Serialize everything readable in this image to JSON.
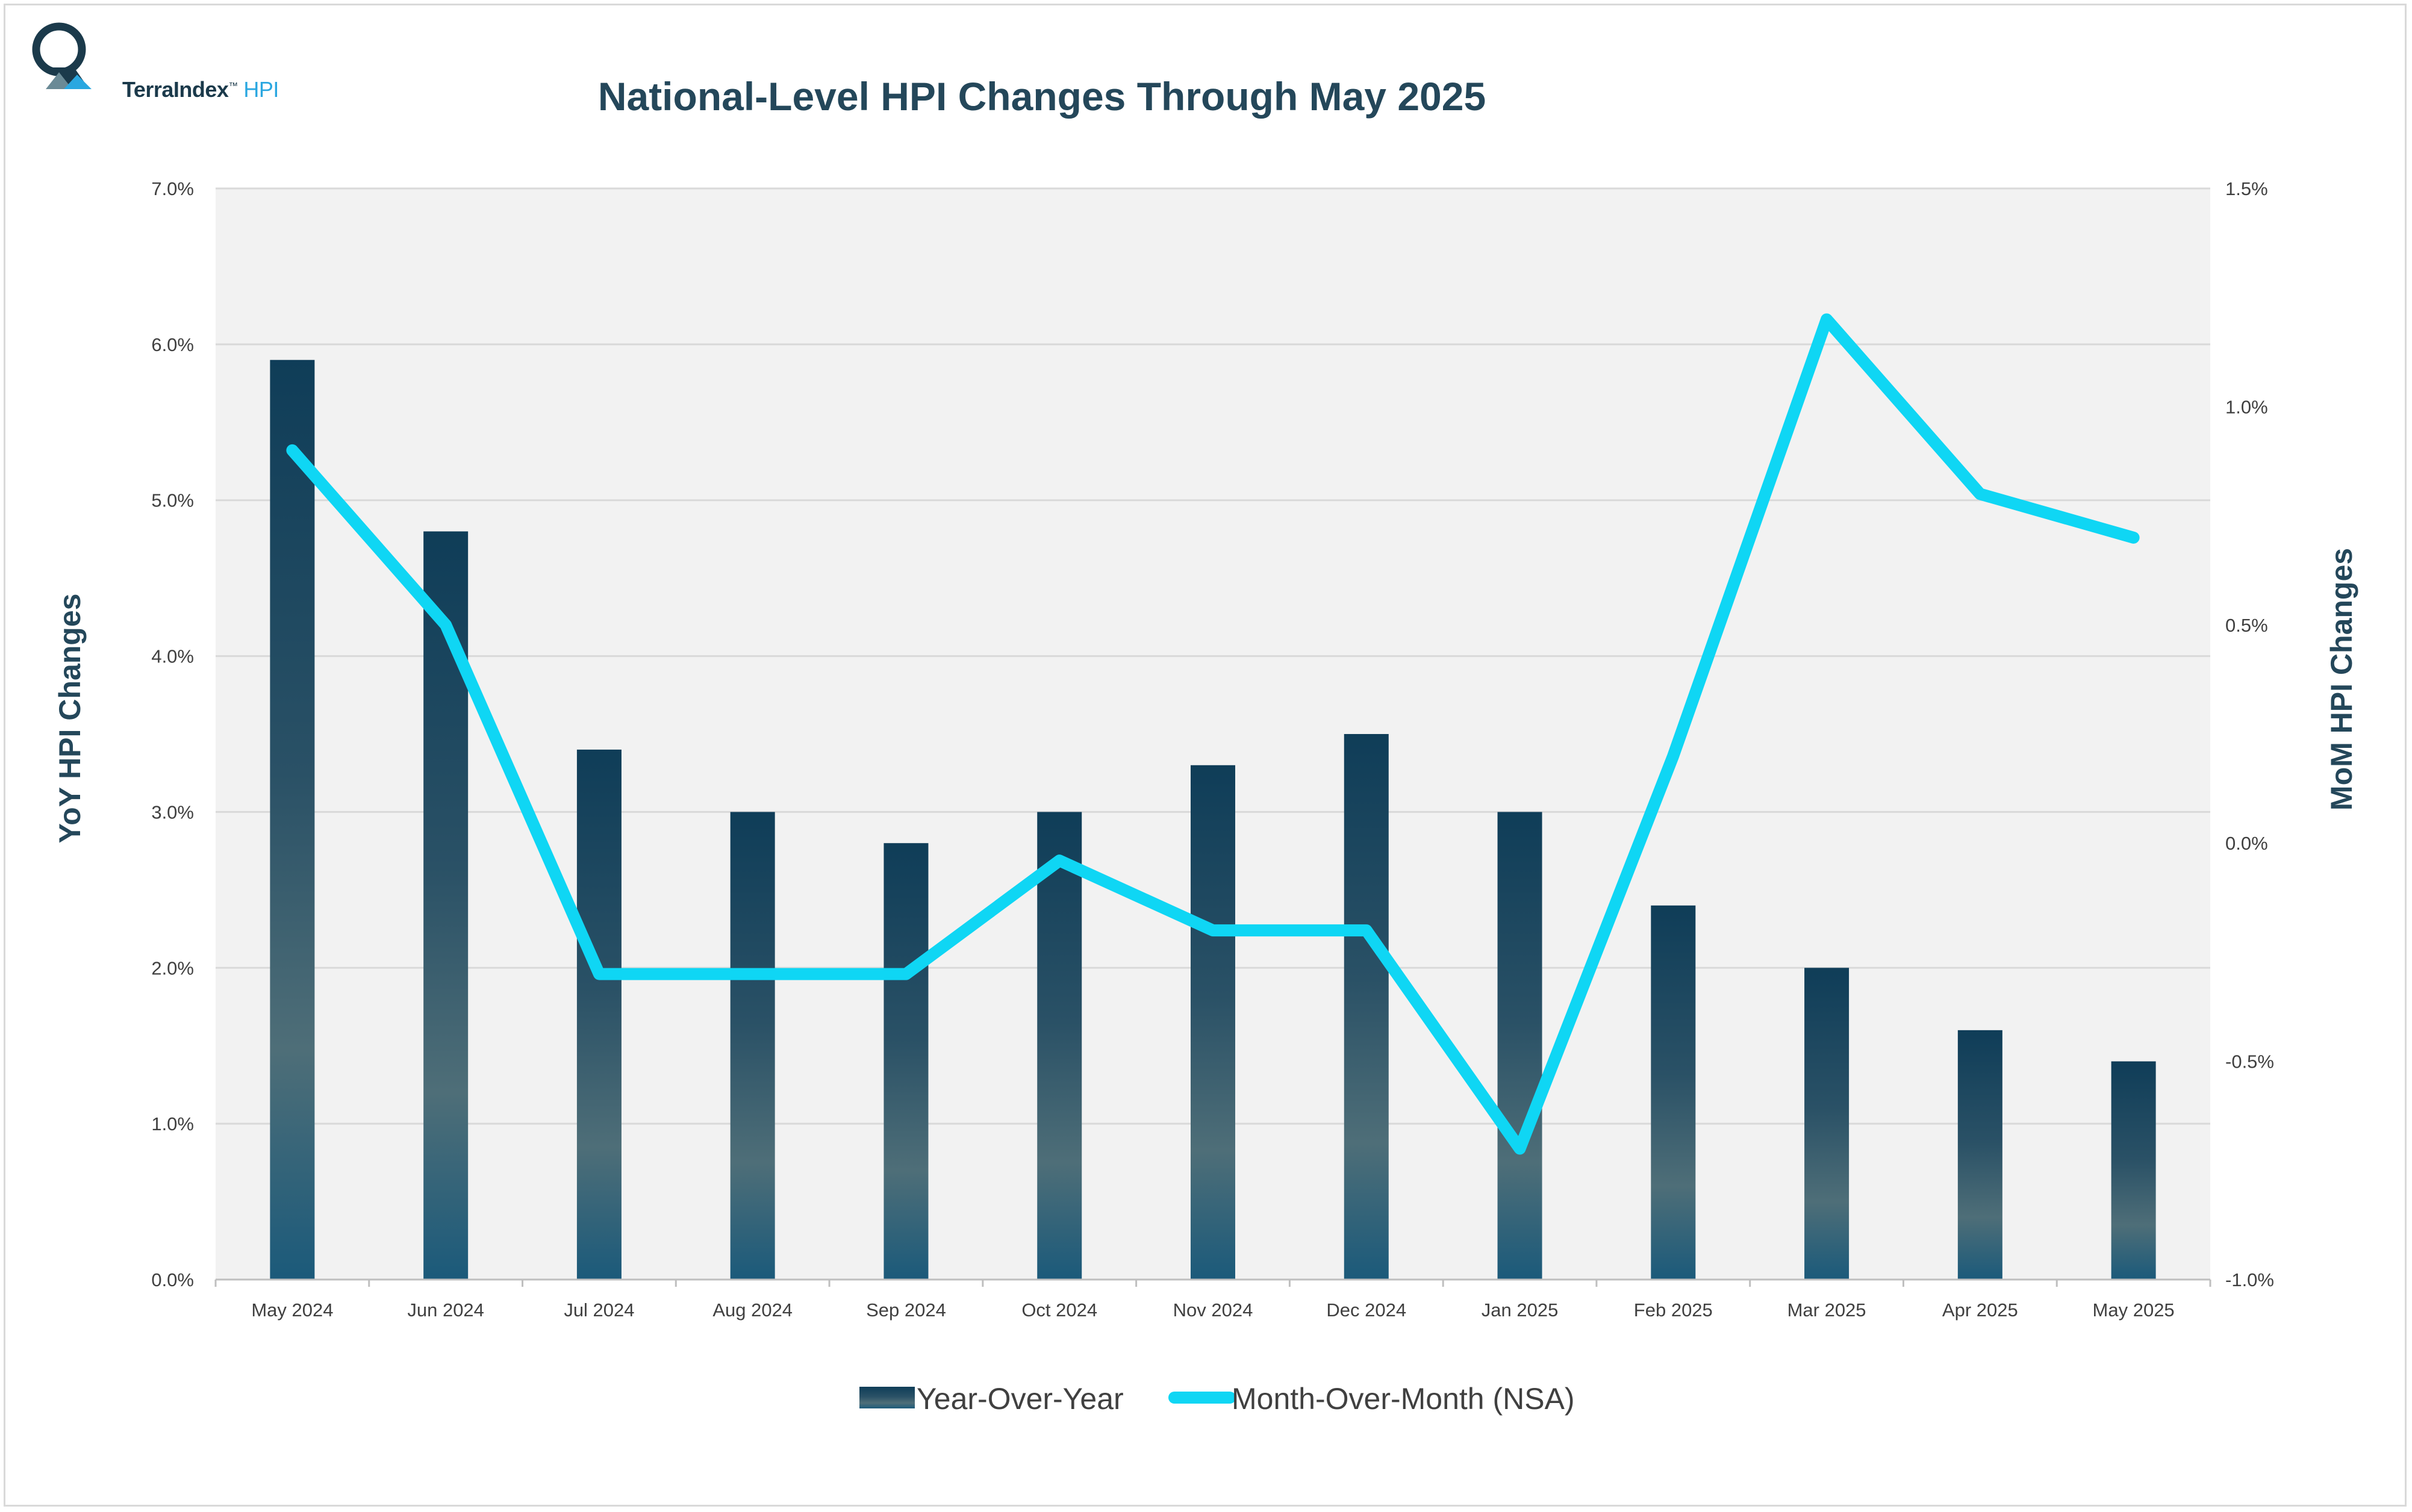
{
  "logo": {
    "brand": "TerraIndex",
    "tm": "™",
    "product": "HPI"
  },
  "colors": {
    "bar_top": "#0f3d58",
    "bar_mid": "#4e6e78",
    "bar_bottom": "#1b5a7a",
    "line": "#0fd6f4",
    "plot_bg": "#f2f2f2",
    "grid": "#d9d9d9",
    "title": "#24475a"
  },
  "chart_data": {
    "type": "bar+line",
    "title": "National-Level HPI Changes Through May 2025",
    "categories": [
      "May 2024",
      "Jun 2024",
      "Jul 2024",
      "Aug 2024",
      "Sep 2024",
      "Oct 2024",
      "Nov 2024",
      "Dec 2024",
      "Jan 2025",
      "Feb 2025",
      "Mar 2025",
      "Apr 2025",
      "May 2025"
    ],
    "series": [
      {
        "name": "Year-Over-Year",
        "type": "bar",
        "axis": "left",
        "values": [
          5.9,
          4.8,
          3.4,
          3.0,
          2.8,
          3.0,
          3.3,
          3.5,
          3.0,
          2.4,
          2.0,
          1.6,
          1.4
        ]
      },
      {
        "name": "Month-Over-Month (NSA)",
        "type": "line",
        "axis": "right",
        "values": [
          0.9,
          0.5,
          -0.3,
          -0.3,
          -0.3,
          -0.04,
          -0.2,
          -0.2,
          -0.7,
          0.2,
          1.2,
          0.8,
          0.7
        ]
      }
    ],
    "ylabel_left": "YoY HPI Changes",
    "ylabel_right": "MoM HPI Changes",
    "ylim_left": [
      0,
      7
    ],
    "ylim_right": [
      -1.0,
      1.5
    ],
    "yticks_left": [
      "0.0%",
      "1.0%",
      "2.0%",
      "3.0%",
      "4.0%",
      "5.0%",
      "6.0%",
      "7.0%"
    ],
    "yticks_right": [
      "-1.0%",
      "-0.5%",
      "0.0%",
      "0.5%",
      "1.0%",
      "1.5%"
    ],
    "grid": true,
    "legend_position": "bottom"
  }
}
